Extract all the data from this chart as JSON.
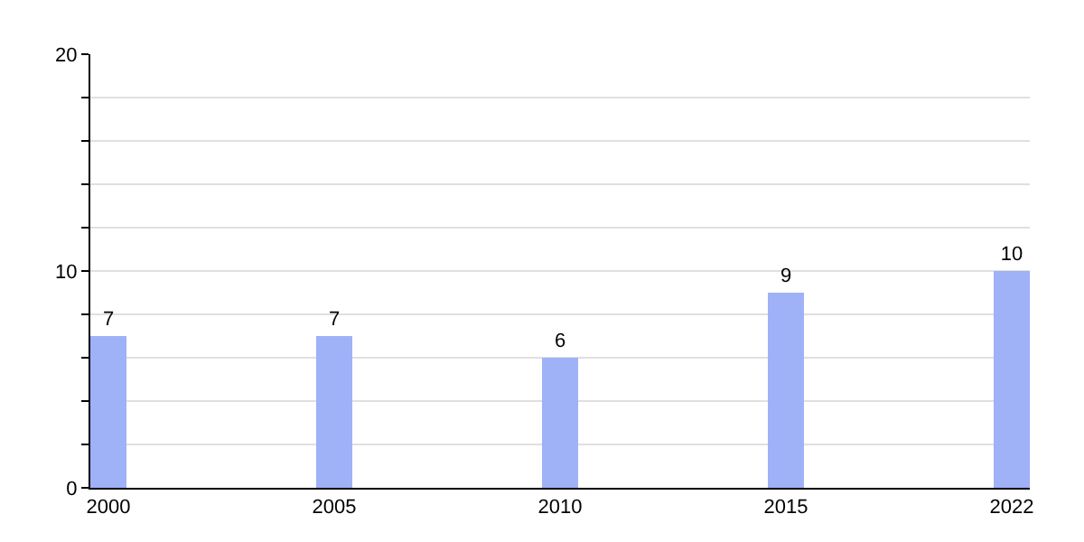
{
  "chart_data": {
    "type": "bar",
    "categories": [
      "2000",
      "2005",
      "2010",
      "2015",
      "2022"
    ],
    "values": [
      7,
      7,
      6,
      9,
      10
    ],
    "color": "#9fb1f7",
    "data_labels": true,
    "ylim": [
      0,
      20
    ],
    "yticks": [
      0,
      {
        "value": 2,
        "label": null
      },
      {
        "value": 4,
        "label": null
      },
      {
        "value": 6,
        "label": null
      },
      {
        "value": 8,
        "label": null
      },
      10,
      {
        "value": 12,
        "label": null
      },
      {
        "value": 14,
        "label": null
      },
      {
        "value": 16,
        "label": null
      },
      {
        "value": 18,
        "label": null
      },
      20
    ],
    "grid": "y"
  }
}
